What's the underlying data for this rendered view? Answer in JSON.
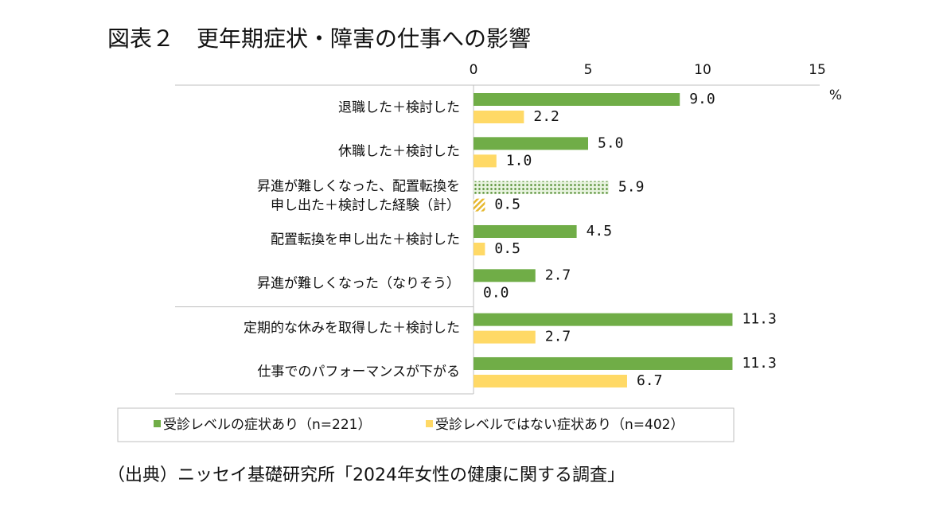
{
  "chart_data": {
    "type": "barh",
    "title": "図表２　更年期症状・障害の仕事への影響",
    "source": "（出典）ニッセイ基礎研究所「2024年女性の健康に関する調査」",
    "unit": "%",
    "categories": [
      "退職した＋検討した",
      "休職した＋検討した",
      "昇進が難しくなった、配置転換を\n申し出た＋検討した経験（計）",
      "配置転換を申し出た＋検討した",
      "昇進が難しくなった（なりそう）",
      "定期的な休みを取得した＋検討した",
      "仕事でのパフォーマンスが下がる"
    ],
    "series": [
      {
        "name": "受診レベルの症状あり（n=221）",
        "color": "#70ad47",
        "values": [
          9.0,
          5.0,
          5.9,
          4.5,
          2.7,
          11.3,
          11.3
        ],
        "value_labels": [
          "9.0",
          "5.0",
          "5.9",
          "4.5",
          "2.7",
          "11.3",
          "11.3"
        ]
      },
      {
        "name": "受診レベルではない症状あり（n=402）",
        "color": "#ffd966",
        "values": [
          2.2,
          1.0,
          0.5,
          0.5,
          0.0,
          2.7,
          6.7
        ],
        "value_labels": [
          "2.2",
          "1.0",
          "0.5",
          "0.5",
          "0.0",
          "2.7",
          "6.7"
        ]
      }
    ],
    "xlim": [
      0,
      15
    ],
    "xticks": [
      0,
      5,
      10,
      15
    ],
    "grid": false,
    "pattern_index": 2,
    "separator_after": 4
  }
}
